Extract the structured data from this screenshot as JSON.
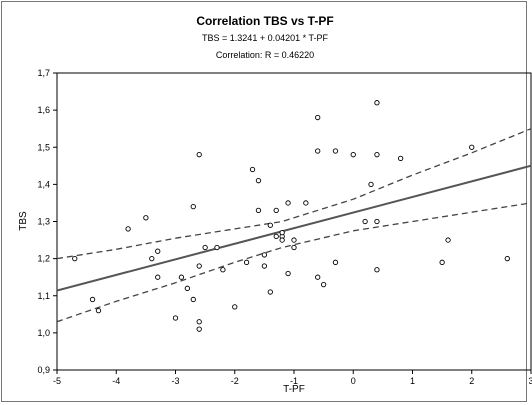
{
  "chart_data": {
    "type": "scatter",
    "title": "Correlation TBS vs T-PF",
    "equation": "TBS = 1.3241 + 0.04201 * T-PF",
    "correlation": "Correlation: R = 0.46220",
    "xlabel": "T-PF",
    "ylabel": "TBS",
    "xlim": [
      -5,
      3
    ],
    "ylim": [
      0.9,
      1.7
    ],
    "x_ticks": [
      "-5",
      "-4",
      "-3",
      "-2",
      "-1",
      "0",
      "1",
      "2",
      "3"
    ],
    "y_ticks": [
      "0,9",
      "1,0",
      "1,1",
      "1,2",
      "1,3",
      "1,4",
      "1,5",
      "1,6",
      "1,7"
    ],
    "grid": false,
    "regression": {
      "intercept": 1.3241,
      "slope": 0.04201
    },
    "confidence_band": {
      "x": [
        -5,
        -4,
        -3,
        -2,
        -1.2,
        0,
        1,
        2,
        3
      ],
      "lower": [
        1.03,
        1.085,
        1.135,
        1.19,
        1.23,
        1.275,
        1.3,
        1.325,
        1.35
      ],
      "upper": [
        1.2,
        1.225,
        1.255,
        1.28,
        1.3,
        1.36,
        1.425,
        1.485,
        1.55
      ]
    },
    "points": [
      {
        "x": -4.7,
        "y": 1.2
      },
      {
        "x": -4.4,
        "y": 1.09
      },
      {
        "x": -4.3,
        "y": 1.06
      },
      {
        "x": -3.8,
        "y": 1.28
      },
      {
        "x": -3.5,
        "y": 1.31
      },
      {
        "x": -3.4,
        "y": 1.2
      },
      {
        "x": -3.3,
        "y": 1.15
      },
      {
        "x": -3.3,
        "y": 1.22
      },
      {
        "x": -3.0,
        "y": 1.04
      },
      {
        "x": -2.9,
        "y": 1.15
      },
      {
        "x": -2.8,
        "y": 1.12
      },
      {
        "x": -2.7,
        "y": 1.34
      },
      {
        "x": -2.7,
        "y": 1.09
      },
      {
        "x": -2.6,
        "y": 1.48
      },
      {
        "x": -2.6,
        "y": 1.03
      },
      {
        "x": -2.6,
        "y": 1.01
      },
      {
        "x": -2.6,
        "y": 1.18
      },
      {
        "x": -2.5,
        "y": 1.23
      },
      {
        "x": -2.3,
        "y": 1.23
      },
      {
        "x": -2.2,
        "y": 1.17
      },
      {
        "x": -2.0,
        "y": 1.07
      },
      {
        "x": -1.8,
        "y": 1.19
      },
      {
        "x": -1.7,
        "y": 1.44
      },
      {
        "x": -1.6,
        "y": 1.41
      },
      {
        "x": -1.6,
        "y": 1.33
      },
      {
        "x": -1.5,
        "y": 1.21
      },
      {
        "x": -1.5,
        "y": 1.18
      },
      {
        "x": -1.4,
        "y": 1.29
      },
      {
        "x": -1.4,
        "y": 1.11
      },
      {
        "x": -1.3,
        "y": 1.33
      },
      {
        "x": -1.3,
        "y": 1.26
      },
      {
        "x": -1.2,
        "y": 1.26
      },
      {
        "x": -1.2,
        "y": 1.27
      },
      {
        "x": -1.2,
        "y": 1.25
      },
      {
        "x": -1.1,
        "y": 1.35
      },
      {
        "x": -1.1,
        "y": 1.16
      },
      {
        "x": -1.0,
        "y": 1.25
      },
      {
        "x": -1.0,
        "y": 1.23
      },
      {
        "x": -0.8,
        "y": 1.35
      },
      {
        "x": -0.6,
        "y": 1.58
      },
      {
        "x": -0.6,
        "y": 1.49
      },
      {
        "x": -0.6,
        "y": 1.15
      },
      {
        "x": -0.5,
        "y": 1.13
      },
      {
        "x": -0.3,
        "y": 1.49
      },
      {
        "x": -0.3,
        "y": 1.19
      },
      {
        "x": 0.0,
        "y": 1.48
      },
      {
        "x": 0.2,
        "y": 1.3
      },
      {
        "x": 0.3,
        "y": 1.4
      },
      {
        "x": 0.4,
        "y": 1.62
      },
      {
        "x": 0.4,
        "y": 1.48
      },
      {
        "x": 0.4,
        "y": 1.3
      },
      {
        "x": 0.4,
        "y": 1.17
      },
      {
        "x": 0.8,
        "y": 1.47
      },
      {
        "x": 1.5,
        "y": 1.19
      },
      {
        "x": 1.6,
        "y": 1.25
      },
      {
        "x": 2.0,
        "y": 1.5
      },
      {
        "x": 2.6,
        "y": 1.2
      }
    ]
  }
}
